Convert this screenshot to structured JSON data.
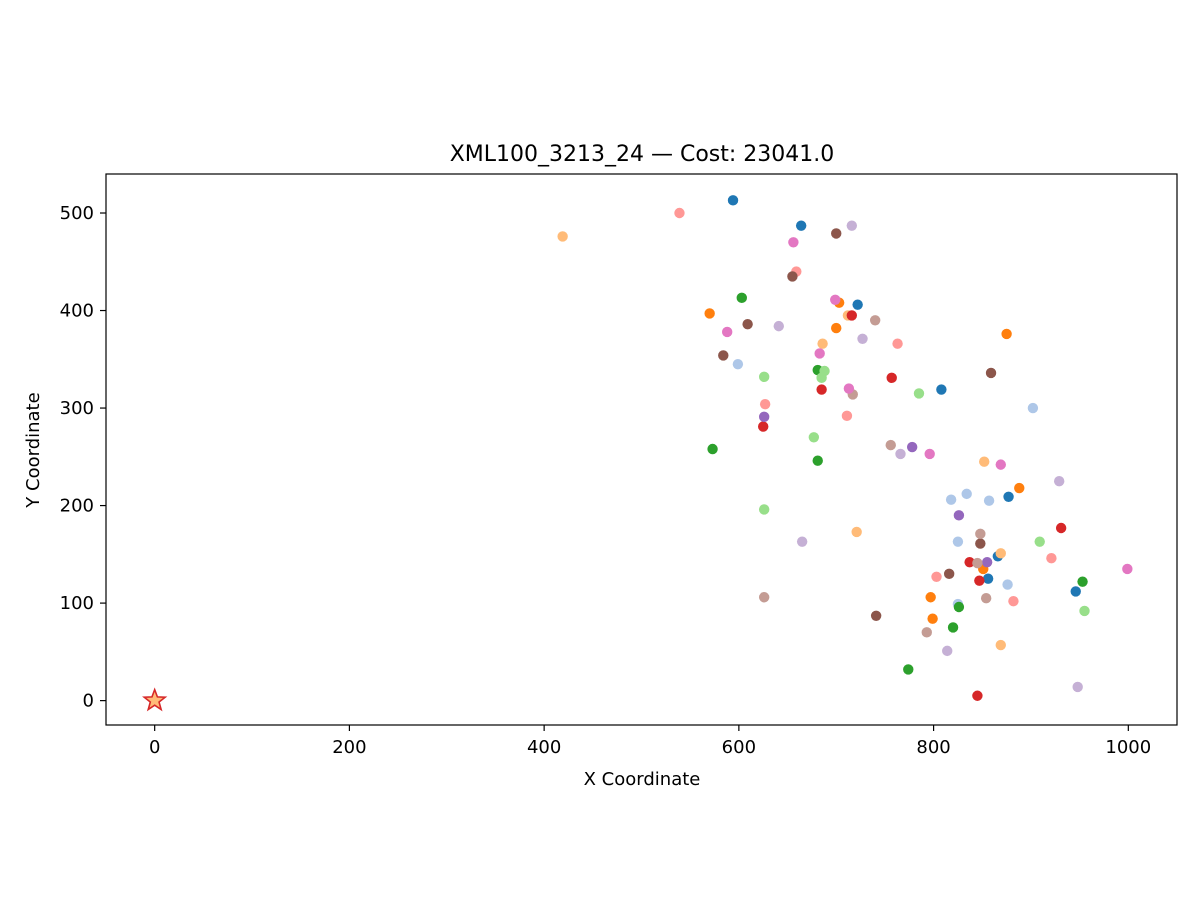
{
  "chart_data": {
    "type": "scatter",
    "title": "XML100_3213_24  —  Cost: 23041.0",
    "xlabel": "X Coordinate",
    "ylabel": "Y Coordinate",
    "xlim": [
      -50,
      1050
    ],
    "ylim": [
      -25,
      540
    ],
    "xticks": [
      0,
      200,
      400,
      600,
      800,
      1000
    ],
    "yticks": [
      0,
      100,
      200,
      300,
      400,
      500
    ],
    "grid": false,
    "legend": "none",
    "depot": {
      "x": 0,
      "y": 0,
      "marker": "star",
      "fill": "#ffbb78",
      "edge": "#d62728"
    },
    "series": [
      {
        "color": "#1f77b4",
        "points": [
          [
            594,
            513
          ],
          [
            664,
            487
          ],
          [
            722,
            406
          ],
          [
            808,
            319
          ],
          [
            877,
            209
          ],
          [
            866,
            148
          ],
          [
            856,
            125
          ],
          [
            946,
            112
          ]
        ]
      },
      {
        "color": "#aec7e8",
        "points": [
          [
            599,
            345
          ],
          [
            818,
            206
          ],
          [
            834,
            212
          ],
          [
            857,
            205
          ],
          [
            825,
            163
          ],
          [
            876,
            119
          ],
          [
            902,
            300
          ],
          [
            825,
            99
          ]
        ]
      },
      {
        "color": "#ff7f0e",
        "points": [
          [
            570,
            397
          ],
          [
            703,
            408
          ],
          [
            700,
            382
          ],
          [
            875,
            376
          ],
          [
            888,
            218
          ],
          [
            851,
            135
          ],
          [
            797,
            106
          ],
          [
            799,
            84
          ]
        ]
      },
      {
        "color": "#ffbb78",
        "points": [
          [
            419,
            476
          ],
          [
            686,
            366
          ],
          [
            712,
            395
          ],
          [
            852,
            245
          ],
          [
            721,
            173
          ],
          [
            869,
            151
          ],
          [
            869,
            57
          ]
        ]
      },
      {
        "color": "#2ca02c",
        "points": [
          [
            603,
            413
          ],
          [
            573,
            258
          ],
          [
            681,
            339
          ],
          [
            681,
            246
          ],
          [
            953,
            122
          ],
          [
            826,
            96
          ],
          [
            820,
            75
          ],
          [
            774,
            32
          ]
        ]
      },
      {
        "color": "#98df8a",
        "points": [
          [
            626,
            332
          ],
          [
            688,
            338
          ],
          [
            685,
            331
          ],
          [
            677,
            270
          ],
          [
            785,
            315
          ],
          [
            626,
            196
          ],
          [
            909,
            163
          ],
          [
            955,
            92
          ]
        ]
      },
      {
        "color": "#d62728",
        "points": [
          [
            716,
            395
          ],
          [
            757,
            331
          ],
          [
            685,
            319
          ],
          [
            625,
            281
          ],
          [
            931,
            177
          ],
          [
            837,
            142
          ],
          [
            847,
            123
          ],
          [
            845,
            5
          ]
        ]
      },
      {
        "color": "#ff9896",
        "points": [
          [
            539,
            500
          ],
          [
            659,
            440
          ],
          [
            763,
            366
          ],
          [
            627,
            304
          ],
          [
            711,
            292
          ],
          [
            921,
            146
          ],
          [
            803,
            127
          ],
          [
            882,
            102
          ]
        ]
      },
      {
        "color": "#9467bd",
        "points": [
          [
            626,
            291
          ],
          [
            778,
            260
          ],
          [
            826,
            190
          ],
          [
            855,
            142
          ]
        ]
      },
      {
        "color": "#c5b0d5",
        "points": [
          [
            716,
            487
          ],
          [
            641,
            384
          ],
          [
            727,
            371
          ],
          [
            766,
            253
          ],
          [
            929,
            225
          ],
          [
            665,
            163
          ],
          [
            814,
            51
          ],
          [
            948,
            14
          ]
        ]
      },
      {
        "color": "#8c564b",
        "points": [
          [
            700,
            479
          ],
          [
            655,
            435
          ],
          [
            609,
            386
          ],
          [
            584,
            354
          ],
          [
            848,
            161
          ],
          [
            816,
            130
          ],
          [
            741,
            87
          ],
          [
            859,
            336
          ]
        ]
      },
      {
        "color": "#c49c94",
        "points": [
          [
            740,
            390
          ],
          [
            717,
            314
          ],
          [
            756,
            262
          ],
          [
            848,
            171
          ],
          [
            845,
            141
          ],
          [
            854,
            105
          ],
          [
            626,
            106
          ],
          [
            793,
            70
          ]
        ]
      },
      {
        "color": "#e377c2",
        "points": [
          [
            656,
            470
          ],
          [
            699,
            411
          ],
          [
            588,
            378
          ],
          [
            683,
            356
          ],
          [
            713,
            320
          ],
          [
            796,
            253
          ],
          [
            869,
            242
          ],
          [
            999,
            135
          ]
        ]
      }
    ]
  }
}
